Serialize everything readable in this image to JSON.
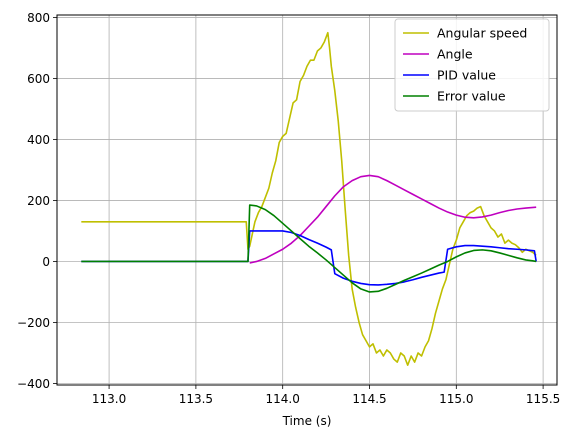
{
  "chart_data": {
    "type": "line",
    "title": "",
    "xlabel": "Time (s)",
    "ylabel": "",
    "xlim": [
      112.7,
      115.58
    ],
    "ylim": [
      -405,
      808
    ],
    "xticks": [
      113.0,
      113.5,
      114.0,
      114.5,
      115.0,
      115.5
    ],
    "xtick_labels": [
      "113.0",
      "113.5",
      "114.0",
      "114.5",
      "115.0",
      "115.5"
    ],
    "yticks": [
      -400,
      -200,
      0,
      200,
      400,
      600,
      800
    ],
    "ytick_labels": [
      "−400",
      "−200",
      "0",
      "200",
      "400",
      "600",
      "800"
    ],
    "grid": true,
    "legend_position": "upper right",
    "series": [
      {
        "name": "Angular speed",
        "color": "#bfbf00",
        "x": [
          112.84,
          113.79,
          113.8,
          113.81,
          113.84,
          113.86,
          113.88,
          113.9,
          113.92,
          113.94,
          113.96,
          113.98,
          114.0,
          114.02,
          114.04,
          114.06,
          114.08,
          114.1,
          114.12,
          114.14,
          114.16,
          114.18,
          114.2,
          114.22,
          114.24,
          114.26,
          114.27,
          114.28,
          114.3,
          114.32,
          114.34,
          114.36,
          114.38,
          114.4,
          114.42,
          114.44,
          114.46,
          114.48,
          114.5,
          114.52,
          114.54,
          114.56,
          114.58,
          114.6,
          114.62,
          114.64,
          114.66,
          114.68,
          114.7,
          114.72,
          114.74,
          114.76,
          114.78,
          114.8,
          114.82,
          114.84,
          114.86,
          114.88,
          114.9,
          114.92,
          114.94,
          114.96,
          114.98,
          115.0,
          115.02,
          115.04,
          115.06,
          115.08,
          115.1,
          115.12,
          115.14,
          115.16,
          115.18,
          115.2,
          115.22,
          115.24,
          115.26,
          115.28,
          115.3,
          115.32,
          115.34,
          115.36,
          115.38,
          115.4,
          115.42,
          115.44,
          115.46
        ],
        "y": [
          130,
          130,
          40,
          50,
          130,
          160,
          180,
          210,
          240,
          290,
          330,
          390,
          410,
          420,
          470,
          520,
          530,
          590,
          610,
          640,
          660,
          660,
          690,
          700,
          720,
          750,
          700,
          640,
          560,
          460,
          330,
          170,
          20,
          -90,
          -150,
          -200,
          -240,
          -260,
          -280,
          -270,
          -300,
          -290,
          -310,
          -290,
          -300,
          -320,
          -330,
          -300,
          -310,
          -340,
          -310,
          -330,
          -300,
          -310,
          -280,
          -260,
          -220,
          -170,
          -130,
          -90,
          -60,
          -10,
          40,
          70,
          110,
          130,
          150,
          160,
          165,
          175,
          180,
          150,
          130,
          110,
          100,
          80,
          90,
          60,
          70,
          60,
          55,
          45,
          30,
          40,
          35,
          30,
          20
        ]
      },
      {
        "name": "Angle",
        "color": "#bf00bf",
        "x": [
          113.81,
          113.85,
          113.9,
          113.95,
          114.0,
          114.05,
          114.1,
          114.15,
          114.2,
          114.25,
          114.3,
          114.35,
          114.4,
          114.45,
          114.5,
          114.55,
          114.6,
          114.65,
          114.7,
          114.75,
          114.8,
          114.85,
          114.9,
          114.95,
          115.0,
          115.05,
          115.1,
          115.15,
          115.2,
          115.25,
          115.3,
          115.35,
          115.4,
          115.46
        ],
        "y": [
          -5,
          0,
          10,
          25,
          40,
          60,
          85,
          115,
          145,
          180,
          215,
          245,
          265,
          278,
          282,
          278,
          265,
          250,
          235,
          220,
          205,
          190,
          175,
          162,
          152,
          145,
          143,
          146,
          152,
          160,
          167,
          172,
          175,
          178
        ]
      },
      {
        "name": "PID value",
        "color": "#0000ff",
        "x": [
          112.84,
          113.8,
          113.81,
          114.0,
          114.05,
          114.1,
          114.15,
          114.2,
          114.25,
          114.28,
          114.3,
          114.35,
          114.4,
          114.45,
          114.5,
          114.55,
          114.6,
          114.65,
          114.7,
          114.75,
          114.8,
          114.85,
          114.9,
          114.93,
          114.95,
          115.0,
          115.05,
          115.1,
          115.15,
          115.2,
          115.25,
          115.3,
          115.35,
          115.4,
          115.45,
          115.46
        ],
        "y": [
          0,
          0,
          100,
          100,
          95,
          85,
          72,
          60,
          47,
          38,
          -40,
          -55,
          -65,
          -72,
          -76,
          -77,
          -75,
          -72,
          -67,
          -60,
          -52,
          -45,
          -38,
          -35,
          40,
          48,
          52,
          52,
          50,
          48,
          45,
          42,
          40,
          38,
          35,
          0
        ]
      },
      {
        "name": "Error value",
        "color": "#008000",
        "x": [
          112.84,
          113.8,
          113.81,
          113.85,
          113.9,
          113.95,
          114.0,
          114.05,
          114.1,
          114.15,
          114.2,
          114.25,
          114.3,
          114.35,
          114.4,
          114.45,
          114.5,
          114.55,
          114.6,
          114.65,
          114.7,
          114.75,
          114.8,
          114.85,
          114.9,
          114.95,
          115.0,
          115.05,
          115.1,
          115.15,
          115.2,
          115.25,
          115.3,
          115.35,
          115.4,
          115.44,
          115.46
        ],
        "y": [
          0,
          0,
          185,
          182,
          170,
          150,
          125,
          100,
          75,
          50,
          28,
          5,
          -20,
          -45,
          -70,
          -90,
          -100,
          -98,
          -88,
          -75,
          -62,
          -50,
          -38,
          -25,
          -12,
          0,
          15,
          28,
          36,
          38,
          35,
          28,
          20,
          12,
          5,
          2,
          0
        ]
      }
    ]
  }
}
